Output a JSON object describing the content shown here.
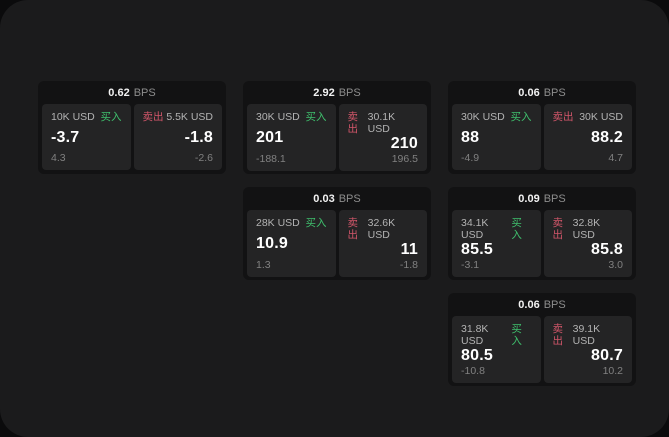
{
  "labels": {
    "bps_unit": "BPS",
    "buy": "买入",
    "sell": "卖出"
  },
  "colors": {
    "page_bg": "#0b0b0c",
    "panel_bg": "#1b1b1c",
    "card_bg": "#121213",
    "cell_bg": "#242425",
    "buy_color": "#3fc06d",
    "sell_color": "#d2566a"
  },
  "cards": [
    {
      "bps": "0.62",
      "buy": {
        "amount": "10K USD",
        "price": "-3.7",
        "delta": "4.3"
      },
      "sell": {
        "amount": "5.5K USD",
        "price": "-1.8",
        "delta": "-2.6"
      }
    },
    {
      "bps": "2.92",
      "buy": {
        "amount": "30K USD",
        "price": "201",
        "delta": "-188.1"
      },
      "sell": {
        "amount": "30.1K USD",
        "price": "210",
        "delta": "196.5"
      }
    },
    {
      "bps": "0.06",
      "buy": {
        "amount": "30K USD",
        "price": "88",
        "delta": "-4.9"
      },
      "sell": {
        "amount": "30K USD",
        "price": "88.2",
        "delta": "4.7"
      }
    },
    {
      "bps": "0.03",
      "buy": {
        "amount": "28K USD",
        "price": "10.9",
        "delta": "1.3"
      },
      "sell": {
        "amount": "32.6K USD",
        "price": "11",
        "delta": "-1.8"
      }
    },
    {
      "bps": "0.09",
      "buy": {
        "amount": "34.1K USD",
        "price": "85.5",
        "delta": "-3.1"
      },
      "sell": {
        "amount": "32.8K USD",
        "price": "85.8",
        "delta": "3.0"
      }
    },
    {
      "bps": "0.06",
      "buy": {
        "amount": "31.8K USD",
        "price": "80.5",
        "delta": "-10.8"
      },
      "sell": {
        "amount": "39.1K USD",
        "price": "80.7",
        "delta": "10.2"
      }
    }
  ]
}
